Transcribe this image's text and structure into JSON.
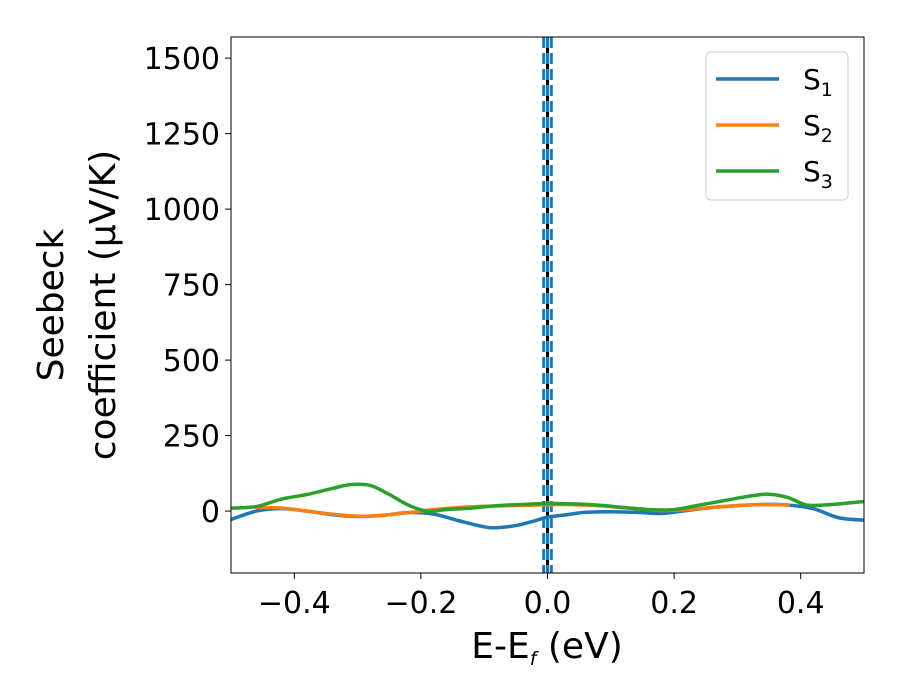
{
  "chart_data": {
    "type": "line",
    "xlabel": "E-E",
    "xlabel_sub": "f",
    "xlabel_unit": " (eV)",
    "ylabel_line1": "Seebeck",
    "ylabel_line2": "coefficient  (μV/K)",
    "xlim": [
      -0.5,
      0.5
    ],
    "ylim": [
      -205,
      1570
    ],
    "x_ticks": [
      -0.4,
      -0.2,
      0.0,
      0.2,
      0.4
    ],
    "x_tick_labels": [
      "−0.4",
      "−0.2",
      "0.0",
      "0.2",
      "0.4"
    ],
    "y_ticks": [
      0,
      250,
      500,
      750,
      1000,
      1250,
      1500
    ],
    "y_tick_labels": [
      "0",
      "250",
      "500",
      "750",
      "1000",
      "1250",
      "1500"
    ],
    "grid": false,
    "legend_position": "top-right",
    "vertical_lines": [
      {
        "x": 0.0,
        "color": "#000000",
        "style": "solid"
      },
      {
        "x": -0.006,
        "color": "#1f77b4",
        "style": "dashed"
      },
      {
        "x": 0.0,
        "color": "#1f77b4",
        "style": "dashed"
      },
      {
        "x": 0.006,
        "color": "#1f77b4",
        "style": "dashed"
      }
    ],
    "series": [
      {
        "name": "S",
        "sub": "1",
        "color": "#1f77b4",
        "points": [
          [
            -0.5,
            -28
          ],
          [
            -0.46,
            0
          ],
          [
            -0.42,
            8
          ],
          [
            -0.38,
            0
          ],
          [
            -0.34,
            -12
          ],
          [
            -0.3,
            -18
          ],
          [
            -0.26,
            -14
          ],
          [
            -0.22,
            -5
          ],
          [
            -0.18,
            -10
          ],
          [
            -0.14,
            -32
          ],
          [
            -0.1,
            -52
          ],
          [
            -0.08,
            -55
          ],
          [
            -0.05,
            -48
          ],
          [
            -0.02,
            -32
          ],
          [
            0.0,
            -20
          ],
          [
            0.03,
            -12
          ],
          [
            0.06,
            -4
          ],
          [
            0.1,
            -2
          ],
          [
            0.14,
            -4
          ],
          [
            0.18,
            -8
          ],
          [
            0.22,
            2
          ],
          [
            0.26,
            12
          ],
          [
            0.3,
            18
          ],
          [
            0.34,
            22
          ],
          [
            0.38,
            20
          ],
          [
            0.42,
            8
          ],
          [
            0.46,
            -22
          ],
          [
            0.5,
            -30
          ]
        ]
      },
      {
        "name": "S",
        "sub": "2",
        "color": "#ff7f0e",
        "points": [
          [
            -0.46,
            12
          ],
          [
            -0.42,
            10
          ],
          [
            -0.38,
            0
          ],
          [
            -0.34,
            -10
          ],
          [
            -0.3,
            -17
          ],
          [
            -0.26,
            -14
          ],
          [
            -0.22,
            -5
          ],
          [
            -0.18,
            5
          ],
          [
            -0.14,
            12
          ],
          [
            -0.1,
            16
          ],
          [
            -0.06,
            18
          ],
          [
            -0.02,
            20
          ],
          [
            0.02,
            22
          ],
          [
            0.06,
            20
          ],
          [
            0.1,
            15
          ],
          [
            0.14,
            8
          ],
          [
            0.18,
            2
          ],
          [
            0.22,
            5
          ],
          [
            0.26,
            12
          ],
          [
            0.3,
            18
          ],
          [
            0.34,
            22
          ],
          [
            0.38,
            20
          ]
        ]
      },
      {
        "name": "S",
        "sub": "3",
        "color": "#2ca02c",
        "points": [
          [
            -0.5,
            10
          ],
          [
            -0.46,
            15
          ],
          [
            -0.42,
            40
          ],
          [
            -0.38,
            55
          ],
          [
            -0.34,
            75
          ],
          [
            -0.31,
            88
          ],
          [
            -0.28,
            85
          ],
          [
            -0.25,
            55
          ],
          [
            -0.22,
            20
          ],
          [
            -0.19,
            0
          ],
          [
            -0.16,
            5
          ],
          [
            -0.12,
            10
          ],
          [
            -0.08,
            18
          ],
          [
            -0.04,
            22
          ],
          [
            0.0,
            25
          ],
          [
            0.04,
            24
          ],
          [
            0.08,
            20
          ],
          [
            0.12,
            12
          ],
          [
            0.16,
            5
          ],
          [
            0.2,
            5
          ],
          [
            0.24,
            20
          ],
          [
            0.28,
            35
          ],
          [
            0.32,
            50
          ],
          [
            0.35,
            56
          ],
          [
            0.38,
            45
          ],
          [
            0.41,
            20
          ],
          [
            0.45,
            22
          ],
          [
            0.5,
            32
          ]
        ]
      }
    ]
  }
}
